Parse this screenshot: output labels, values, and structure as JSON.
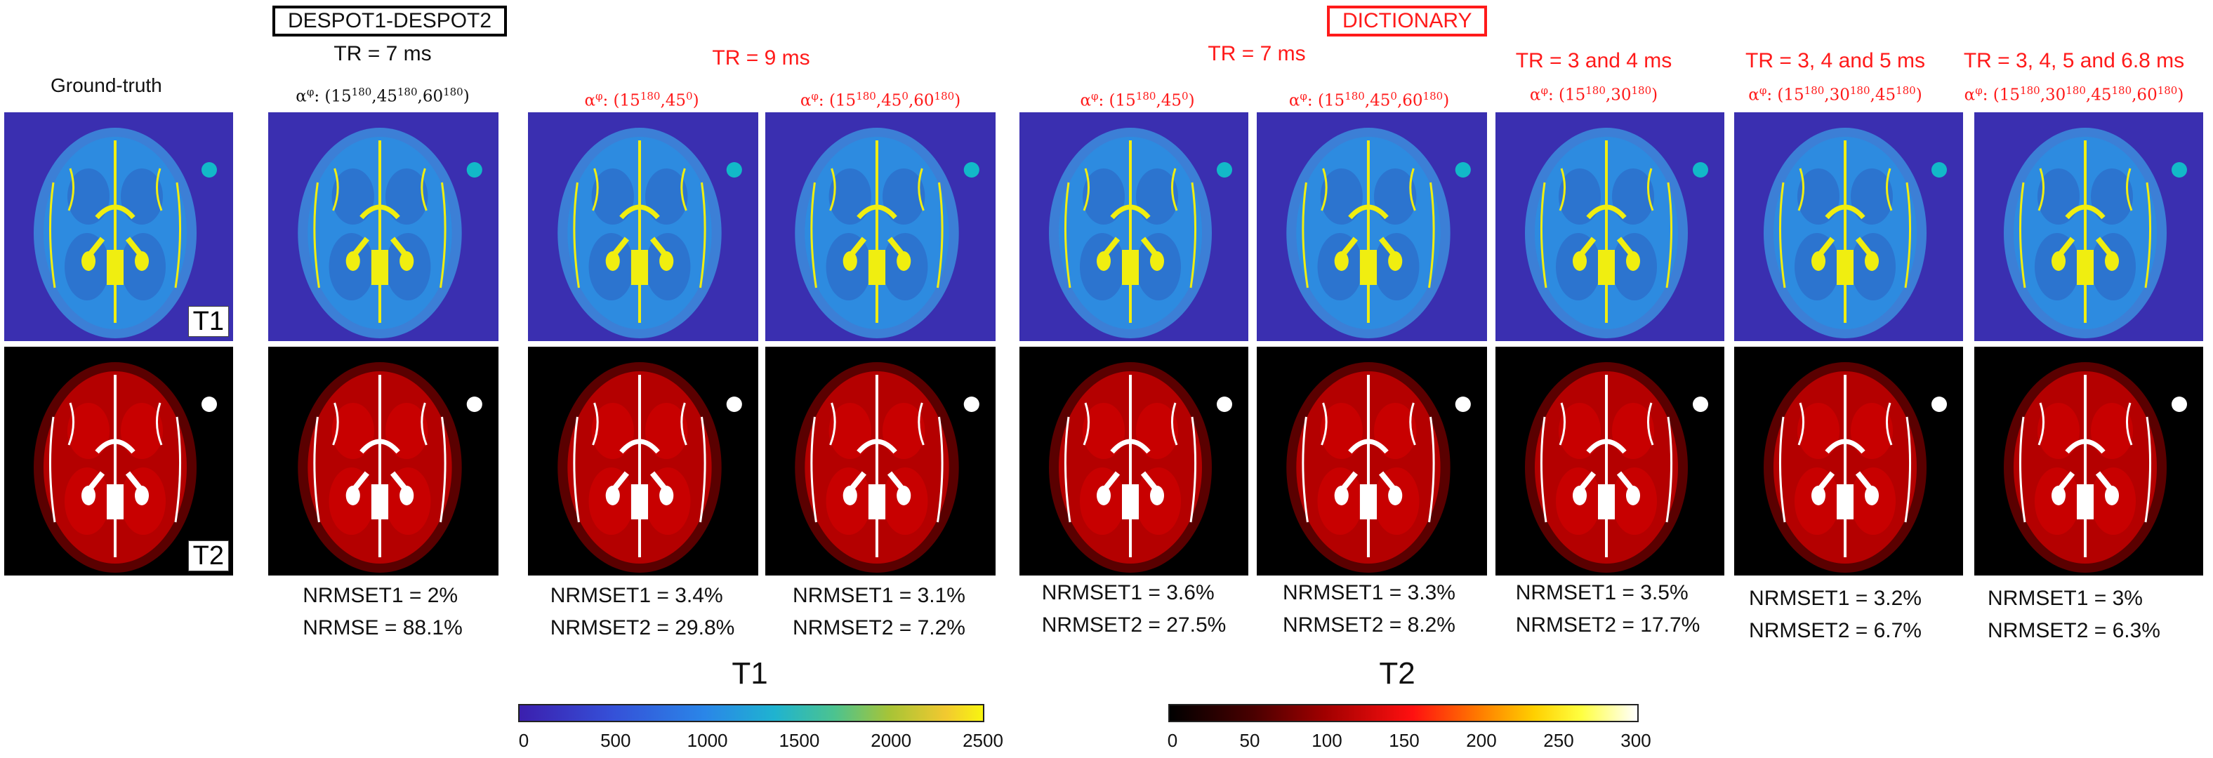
{
  "header": {
    "despot_label": "DESPOT1-DESPOT2",
    "dictionary_label": "DICTIONARY",
    "ground_truth": "Ground-truth",
    "tr_despot": "TR = 7 ms",
    "tr_9": "TR = 9 ms",
    "tr_7": "TR = 7 ms",
    "tr_3_4": "TR = 3 and 4 ms",
    "tr_3_4_5": "TR = 3, 4 and 5 ms",
    "tr_3_4_5_68": "TR = 3, 4, 5 and 6.8 ms"
  },
  "columns": [
    {
      "alpha_prefix": "α",
      "alpha_sup": "φ",
      "alpha_text": ": (15",
      "angles": [
        [
          "15",
          "180"
        ],
        [
          "45",
          "180"
        ],
        [
          "60",
          "180"
        ]
      ],
      "stat1": "NRMSET1 = 2%",
      "stat2": "NRMSE = 88.1%"
    },
    {
      "angles": [
        [
          "15",
          "180"
        ],
        [
          "45",
          "0"
        ]
      ],
      "stat1": "NRMSET1 = 3.4%",
      "stat2": "NRMSET2 = 29.8%"
    },
    {
      "angles": [
        [
          "15",
          "180"
        ],
        [
          "45",
          "0"
        ],
        [
          "60",
          "180"
        ]
      ],
      "stat1": "NRMSET1 = 3.1%",
      "stat2": "NRMSET2 = 7.2%"
    },
    {
      "angles": [
        [
          "15",
          "180"
        ],
        [
          "45",
          "0"
        ]
      ],
      "stat1": "NRMSET1 = 3.6%",
      "stat2": "NRMSET2 = 27.5%"
    },
    {
      "angles": [
        [
          "15",
          "180"
        ],
        [
          "45",
          "0"
        ],
        [
          "60",
          "180"
        ]
      ],
      "stat1": "NRMSET1 = 3.3%",
      "stat2": "NRMSET2 = 8.2%"
    },
    {
      "angles": [
        [
          "15",
          "180"
        ],
        [
          "30",
          "180"
        ]
      ],
      "stat1": "NRMSET1 = 3.5%",
      "stat2": "NRMSET2 = 17.7%"
    },
    {
      "angles": [
        [
          "15",
          "180"
        ],
        [
          "30",
          "180"
        ],
        [
          "45",
          "180"
        ]
      ],
      "stat1": "NRMSET1 = 3.2%",
      "stat2": "NRMSET2 = 6.7%"
    },
    {
      "angles": [
        [
          "15",
          "180"
        ],
        [
          "30",
          "180"
        ],
        [
          "45",
          "180"
        ],
        [
          "60",
          "180"
        ]
      ],
      "stat1": "NRMSET1 = 3%",
      "stat2": "NRMSET2 = 6.3%"
    }
  ],
  "tags": {
    "t1": "T1",
    "t2": "T2"
  },
  "colorbars": {
    "t1": {
      "title": "T1",
      "ticks": [
        "0",
        "500",
        "1000",
        "1500",
        "2000",
        "2500"
      ]
    },
    "t2": {
      "title": "T2",
      "ticks": [
        "0",
        "50",
        "100",
        "150",
        "200",
        "250",
        "300"
      ]
    }
  },
  "colors": {
    "red": "#ff1a1a",
    "t1_bg": "#3a2fb0",
    "t1_tissue": "#2d8be0",
    "t2_bg": "#000000",
    "t2_tissue": "#b40000"
  }
}
